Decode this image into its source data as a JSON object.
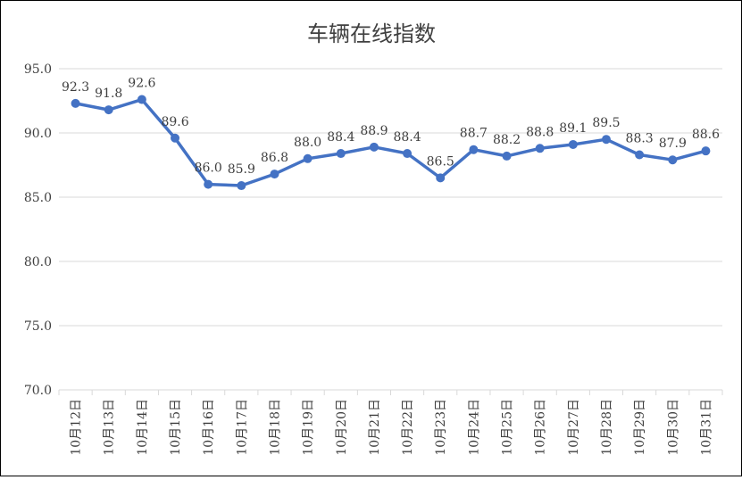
{
  "chart_data": {
    "type": "line",
    "title": "车辆在线指数",
    "xlabel": "",
    "ylabel": "",
    "ylim": [
      70,
      95
    ],
    "yticks": [
      "70.0",
      "75.0",
      "80.0",
      "85.0",
      "90.0",
      "95.0"
    ],
    "ytick_values": [
      70,
      75,
      80,
      85,
      90,
      95
    ],
    "grid": true,
    "legend": "none",
    "categories": [
      "10月12日",
      "10月13日",
      "10月14日",
      "10月15日",
      "10月16日",
      "10月17日",
      "10月18日",
      "10月19日",
      "10月20日",
      "10月21日",
      "10月22日",
      "10月23日",
      "10月24日",
      "10月25日",
      "10月26日",
      "10月27日",
      "10月28日",
      "10月29日",
      "10月30日",
      "10月31日"
    ],
    "series": [
      {
        "values": [
          92.3,
          91.8,
          92.6,
          89.6,
          86.0,
          85.9,
          86.8,
          88.0,
          88.4,
          88.9,
          88.4,
          86.5,
          88.7,
          88.2,
          88.8,
          89.1,
          89.5,
          88.3,
          87.9,
          88.6
        ],
        "labels": [
          "92.3",
          "91.8",
          "92.6",
          "89.6",
          "86.0",
          "85.9",
          "86.8",
          "88.0",
          "88.4",
          "88.9",
          "88.4",
          "86.5",
          "88.7",
          "88.2",
          "88.8",
          "89.1",
          "89.5",
          "88.3",
          "87.9",
          "88.6"
        ],
        "color": "#4472c4"
      }
    ]
  }
}
